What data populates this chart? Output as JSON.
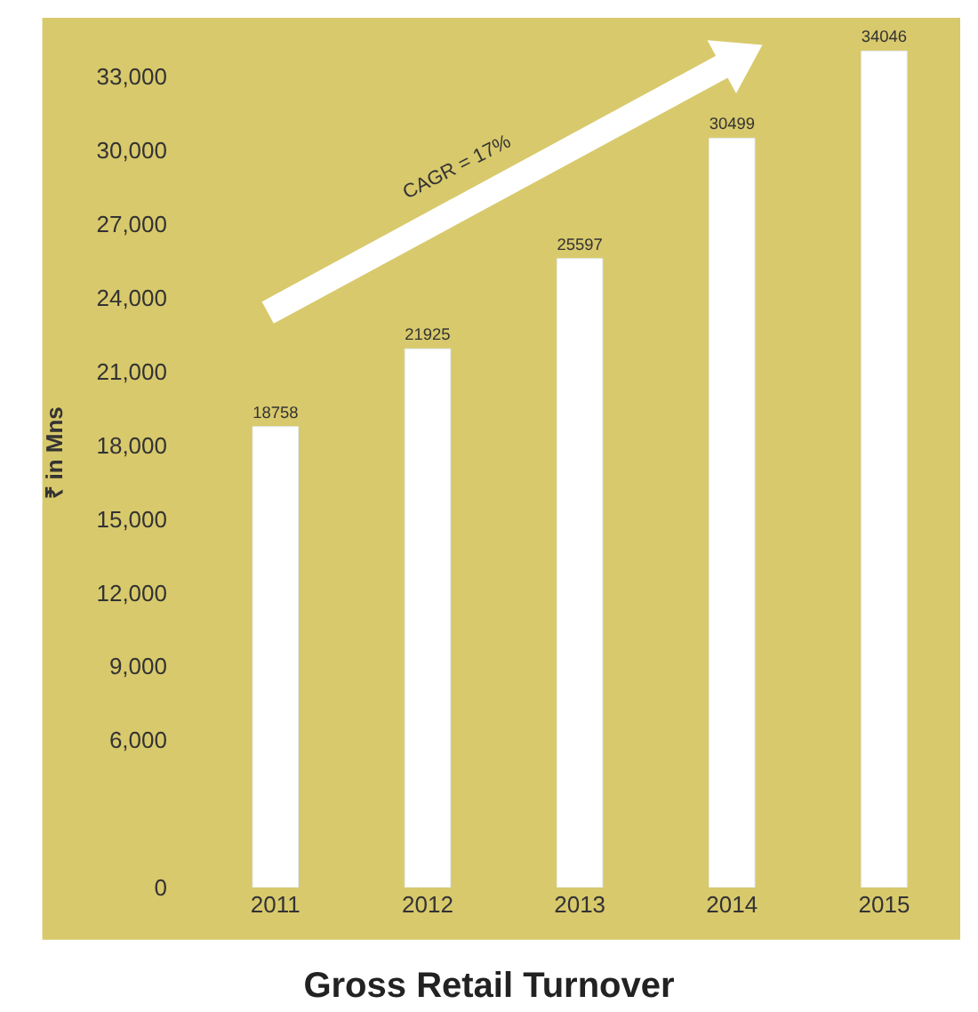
{
  "chart_data": {
    "type": "bar",
    "title": "Gross Retail Turnover",
    "ylabel": "₹ in Mns",
    "categories": [
      "2011",
      "2012",
      "2013",
      "2014",
      "2015"
    ],
    "values": [
      18758,
      21925,
      25597,
      30499,
      34046
    ],
    "color": "#ffffff",
    "ylim": [
      0,
      35400
    ],
    "yticks": [
      0,
      {
        "value": 6000,
        "label": "6,000"
      },
      {
        "value": 9000,
        "label": "9,000"
      },
      {
        "value": 12000,
        "label": "12,000"
      },
      {
        "value": 15000,
        "label": "15,000"
      },
      {
        "value": 18000,
        "label": "18,000"
      },
      {
        "value": 21000,
        "label": "21,000"
      },
      {
        "value": 24000,
        "label": "24,000"
      },
      {
        "value": 27000,
        "label": "27,000"
      },
      {
        "value": 30000,
        "label": "30,000"
      },
      {
        "value": 33000,
        "label": "33,000"
      }
    ],
    "data_labels": true,
    "grid": false,
    "legend": false,
    "annotations": [
      "CAGR = 17%"
    ]
  }
}
